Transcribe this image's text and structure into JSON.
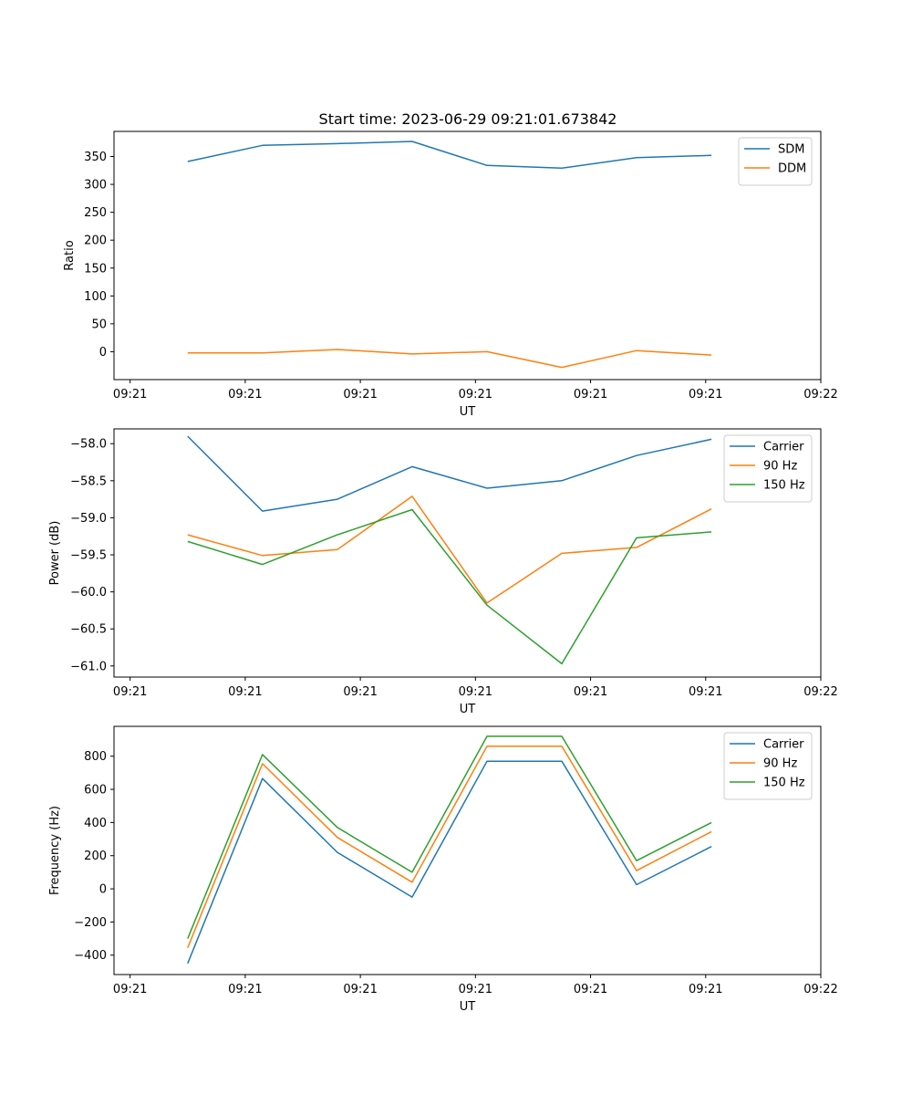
{
  "figure": {
    "title": "Start time: 2023-06-29 09:21:01.673842"
  },
  "chart_data": [
    {
      "type": "line",
      "title": "Start time: 2023-06-29 09:21:01.673842",
      "xlabel": "UT",
      "ylabel": "Ratio",
      "x_ticks": [
        "09:21",
        "09:21",
        "09:21",
        "09:21",
        "09:21",
        "09:21",
        "09:22"
      ],
      "x_tick_positions": [
        0,
        1,
        2,
        3,
        4,
        5,
        6
      ],
      "xlim": [
        -0.14,
        6.0
      ],
      "x": [
        0.5,
        1.15,
        1.8,
        2.45,
        3.1,
        3.75,
        4.4,
        5.05
      ],
      "y_ticks": [
        0,
        50,
        100,
        150,
        200,
        250,
        300,
        350
      ],
      "ylim": [
        -50,
        395
      ],
      "legend": "top-right",
      "series": [
        {
          "name": "SDM",
          "color": "#1f77b4",
          "values": [
            341,
            370,
            373,
            377,
            334,
            329,
            348,
            352
          ]
        },
        {
          "name": "DDM",
          "color": "#ff7f0e",
          "values": [
            -2,
            -2,
            4,
            -4,
            0,
            -28,
            2,
            -6
          ]
        }
      ]
    },
    {
      "type": "line",
      "title": "",
      "xlabel": "UT",
      "ylabel": "Power (dB)",
      "x_ticks": [
        "09:21",
        "09:21",
        "09:21",
        "09:21",
        "09:21",
        "09:21",
        "09:22"
      ],
      "x_tick_positions": [
        0,
        1,
        2,
        3,
        4,
        5,
        6
      ],
      "xlim": [
        -0.14,
        6.0
      ],
      "x": [
        0.5,
        1.15,
        1.8,
        2.45,
        3.1,
        3.75,
        4.4,
        5.05
      ],
      "y_ticks": [
        -58.0,
        -58.5,
        -59.0,
        -59.5,
        -60.0,
        -60.5,
        -61.0
      ],
      "y_tick_labels": [
        "−58.0",
        "−58.5",
        "−59.0",
        "−59.5",
        "−60.0",
        "−60.5",
        "−61.0"
      ],
      "ylim": [
        -61.15,
        -57.8
      ],
      "legend": "top-right",
      "series": [
        {
          "name": "Carrier",
          "color": "#1f77b4",
          "values": [
            -57.9,
            -58.91,
            -58.75,
            -58.31,
            -58.6,
            -58.5,
            -58.16,
            -57.94
          ]
        },
        {
          "name": "90 Hz",
          "color": "#ff7f0e",
          "values": [
            -59.23,
            -59.51,
            -59.43,
            -58.71,
            -60.15,
            -59.48,
            -59.4,
            -58.88
          ]
        },
        {
          "name": "150 Hz",
          "color": "#2ca02c",
          "values": [
            -59.32,
            -59.63,
            -59.23,
            -58.89,
            -60.18,
            -60.97,
            -59.27,
            -59.19
          ]
        }
      ]
    },
    {
      "type": "line",
      "title": "",
      "xlabel": "UT",
      "ylabel": "Frequency (Hz)",
      "x_ticks": [
        "09:21",
        "09:21",
        "09:21",
        "09:21",
        "09:21",
        "09:21",
        "09:22"
      ],
      "x_tick_positions": [
        0,
        1,
        2,
        3,
        4,
        5,
        6
      ],
      "xlim": [
        -0.14,
        6.0
      ],
      "x": [
        0.5,
        1.15,
        1.8,
        2.45,
        3.1,
        3.75,
        4.4,
        5.05
      ],
      "y_ticks": [
        -400,
        -200,
        0,
        200,
        400,
        600,
        800
      ],
      "y_tick_labels": [
        "−400",
        "−200",
        "0",
        "200",
        "400",
        "600",
        "800"
      ],
      "ylim": [
        -517,
        980
      ],
      "legend": "top-right",
      "series": [
        {
          "name": "Carrier",
          "color": "#1f77b4",
          "values": [
            -450,
            665,
            220,
            -50,
            770,
            770,
            25,
            255
          ]
        },
        {
          "name": "90 Hz",
          "color": "#ff7f0e",
          "values": [
            -355,
            755,
            310,
            40,
            860,
            860,
            110,
            345
          ]
        },
        {
          "name": "150 Hz",
          "color": "#2ca02c",
          "values": [
            -300,
            810,
            370,
            100,
            920,
            920,
            170,
            400
          ]
        }
      ]
    }
  ]
}
